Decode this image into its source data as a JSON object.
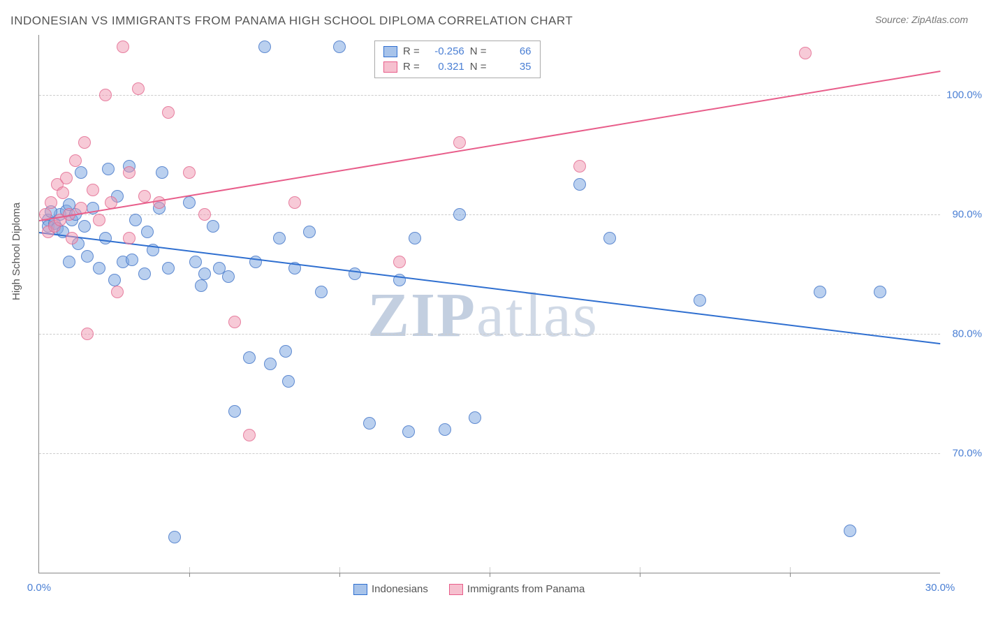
{
  "title": "INDONESIAN VS IMMIGRANTS FROM PANAMA HIGH SCHOOL DIPLOMA CORRELATION CHART",
  "source": "Source: ZipAtlas.com",
  "ylabel": "High School Diploma",
  "watermark_bold": "ZIP",
  "watermark_rest": "atlas",
  "chart": {
    "type": "scatter",
    "background_color": "#ffffff",
    "grid_color": "#cccccc",
    "axis_color": "#888888",
    "text_color": "#555555",
    "value_color": "#4a7fd4",
    "xlim": [
      0,
      30
    ],
    "ylim": [
      60,
      105
    ],
    "ytick_values": [
      70,
      80,
      90,
      100
    ],
    "ytick_labels": [
      "70.0%",
      "80.0%",
      "90.0%",
      "100.0%"
    ],
    "xtick_values": [
      0,
      5,
      10,
      15,
      20,
      25,
      30
    ],
    "xtick_labels": [
      "0.0%",
      "",
      "",
      "",
      "",
      "",
      "30.0%"
    ],
    "marker_size": 16,
    "series": [
      {
        "name": "Indonesians",
        "color_fill": "rgba(130,170,225,0.55)",
        "color_border": "rgba(70,120,200,0.8)",
        "trend_color": "#2f6fd0",
        "R": "-0.256",
        "N": "66",
        "trend": {
          "x1": 0,
          "y1": 88.5,
          "x2": 30,
          "y2": 79.2
        },
        "points": [
          [
            0.3,
            89.5
          ],
          [
            0.3,
            89.0
          ],
          [
            0.5,
            89.2
          ],
          [
            0.6,
            88.8
          ],
          [
            0.7,
            90.0
          ],
          [
            0.8,
            88.5
          ],
          [
            0.9,
            90.3
          ],
          [
            1.0,
            86.0
          ],
          [
            1.1,
            89.5
          ],
          [
            1.2,
            90.0
          ],
          [
            1.3,
            87.5
          ],
          [
            1.4,
            93.5
          ],
          [
            1.5,
            89.0
          ],
          [
            1.6,
            86.5
          ],
          [
            1.8,
            90.5
          ],
          [
            2.0,
            85.5
          ],
          [
            2.2,
            88.0
          ],
          [
            2.3,
            93.8
          ],
          [
            2.5,
            84.5
          ],
          [
            2.6,
            91.5
          ],
          [
            2.8,
            86.0
          ],
          [
            3.0,
            94.0
          ],
          [
            3.2,
            89.5
          ],
          [
            3.5,
            85.0
          ],
          [
            3.6,
            88.5
          ],
          [
            3.8,
            87.0
          ],
          [
            4.0,
            90.5
          ],
          [
            4.1,
            93.5
          ],
          [
            4.3,
            85.5
          ],
          [
            4.5,
            63.0
          ],
          [
            5.0,
            91.0
          ],
          [
            5.2,
            86.0
          ],
          [
            5.5,
            85.0
          ],
          [
            5.8,
            89.0
          ],
          [
            6.0,
            85.5
          ],
          [
            6.3,
            84.8
          ],
          [
            6.5,
            73.5
          ],
          [
            7.0,
            78.0
          ],
          [
            7.2,
            86.0
          ],
          [
            7.5,
            104.0
          ],
          [
            7.7,
            77.5
          ],
          [
            8.0,
            88.0
          ],
          [
            8.2,
            78.5
          ],
          [
            8.3,
            76.0
          ],
          [
            8.5,
            85.5
          ],
          [
            9.0,
            88.5
          ],
          [
            9.4,
            83.5
          ],
          [
            10.0,
            104.0
          ],
          [
            10.5,
            85.0
          ],
          [
            11.0,
            72.5
          ],
          [
            12.0,
            84.5
          ],
          [
            12.3,
            71.8
          ],
          [
            12.5,
            88.0
          ],
          [
            13.5,
            72.0
          ],
          [
            14.0,
            90.0
          ],
          [
            14.5,
            73.0
          ],
          [
            18.0,
            92.5
          ],
          [
            19.0,
            88.0
          ],
          [
            22.0,
            82.8
          ],
          [
            26.0,
            83.5
          ],
          [
            27.0,
            63.5
          ],
          [
            28.0,
            83.5
          ],
          [
            0.4,
            90.2
          ],
          [
            1.0,
            90.8
          ],
          [
            3.1,
            86.2
          ],
          [
            5.4,
            84.0
          ]
        ]
      },
      {
        "name": "Immigrants from Panama",
        "color_fill": "rgba(240,150,175,0.5)",
        "color_border": "rgba(225,100,140,0.75)",
        "trend_color": "#e85d8a",
        "R": "0.321",
        "N": "35",
        "trend": {
          "x1": 0,
          "y1": 89.5,
          "x2": 30,
          "y2": 102.0
        },
        "points": [
          [
            0.2,
            90.0
          ],
          [
            0.3,
            88.5
          ],
          [
            0.4,
            91.0
          ],
          [
            0.5,
            89.0
          ],
          [
            0.6,
            92.5
          ],
          [
            0.7,
            89.5
          ],
          [
            0.8,
            91.8
          ],
          [
            0.9,
            93.0
          ],
          [
            1.0,
            90.0
          ],
          [
            1.1,
            88.0
          ],
          [
            1.2,
            94.5
          ],
          [
            1.4,
            90.5
          ],
          [
            1.5,
            96.0
          ],
          [
            1.6,
            80.0
          ],
          [
            1.8,
            92.0
          ],
          [
            2.0,
            89.5
          ],
          [
            2.2,
            100.0
          ],
          [
            2.4,
            91.0
          ],
          [
            2.6,
            83.5
          ],
          [
            2.8,
            104.0
          ],
          [
            3.0,
            93.5
          ],
          [
            3.0,
            88.0
          ],
          [
            3.3,
            100.5
          ],
          [
            3.5,
            91.5
          ],
          [
            4.0,
            91.0
          ],
          [
            4.3,
            98.5
          ],
          [
            5.0,
            93.5
          ],
          [
            5.5,
            90.0
          ],
          [
            6.5,
            81.0
          ],
          [
            7.0,
            71.5
          ],
          [
            8.5,
            91.0
          ],
          [
            12.0,
            86.0
          ],
          [
            14.0,
            96.0
          ],
          [
            18.0,
            94.0
          ],
          [
            25.5,
            103.5
          ]
        ]
      }
    ],
    "legend_labels": {
      "R": "R =",
      "N": "N =",
      "series1": "Indonesians",
      "series2": "Immigrants from Panama"
    }
  }
}
